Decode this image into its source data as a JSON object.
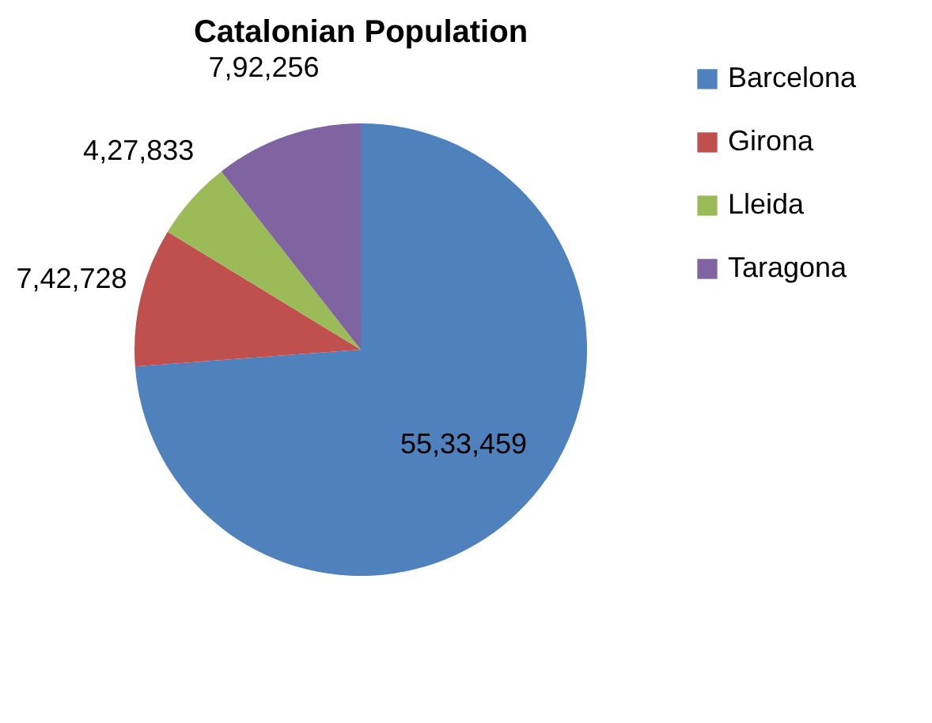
{
  "chart_data": {
    "type": "pie",
    "title": "Catalonian Population",
    "categories": [
      "Barcelona",
      "Girona",
      "Lleida",
      "Taragona"
    ],
    "values": [
      5533459,
      742728,
      427833,
      792256
    ],
    "value_labels": [
      "55,33,459",
      "7,42,728",
      "4,27,833",
      "7,92,256"
    ],
    "colors": [
      "#4f81bd",
      "#c0504d",
      "#9bbb59",
      "#8064a2"
    ],
    "legend": "right"
  }
}
